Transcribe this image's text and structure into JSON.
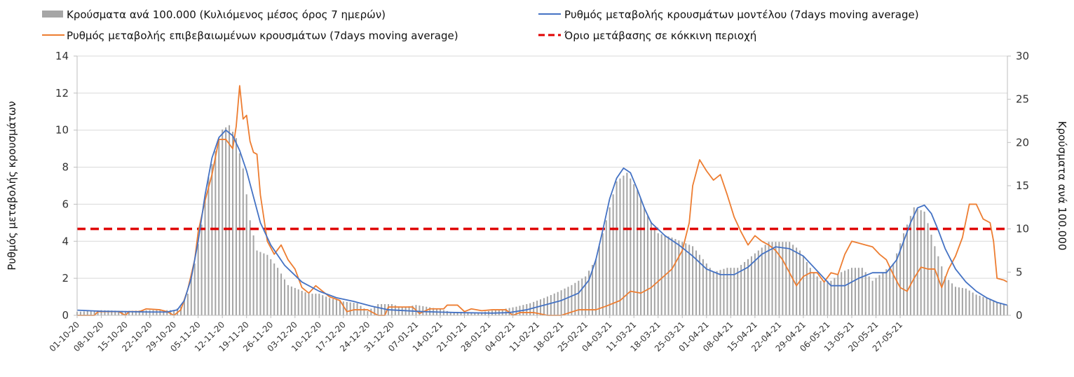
{
  "chart_data": {
    "type": "bar",
    "title": "",
    "ylabel": "Ρυθμός μεταβολής κρουσμάτων",
    "y2label": "Κρούσματα ανά 100.000",
    "ylim": [
      0,
      14
    ],
    "y2lim": [
      0,
      30
    ],
    "yticks": [
      "0",
      "2",
      "4",
      "6",
      "8",
      "10",
      "12",
      "14"
    ],
    "y2ticks": [
      "0",
      "5",
      "10",
      "15",
      "20",
      "25",
      "30"
    ],
    "xticks": [
      "01-10-20",
      "08-10-20",
      "15-10-20",
      "22-10-20",
      "29-10-20",
      "05-11-20",
      "12-11-20",
      "19-11-20",
      "26-11-20",
      "03-12-20",
      "10-12-20",
      "17-12-20",
      "24-12-20",
      "31-12-20",
      "07-01-21",
      "14-01-21",
      "21-01-21",
      "28-01-21",
      "04-02-21",
      "11-02-21",
      "18-02-21",
      "25-02-21",
      "04-03-21",
      "11-03-21",
      "18-03-21",
      "25-03-21",
      "01-04-21",
      "08-04-21",
      "15-04-21",
      "22-04-21",
      "29-04-21",
      "06-05-21",
      "13-05-21",
      "20-05-21",
      "27-05-21"
    ],
    "legend": [
      {
        "key": "bars",
        "label": "Κρούσματα ανά 100.000 (Κυλιόμενος μέσος όρος 7 ημερών)",
        "color": "#a6a6a6"
      },
      {
        "key": "model",
        "label": "Ρυθμός μεταβολής κρουσμάτων μοντέλου (7days moving average)",
        "color": "#4472c4"
      },
      {
        "key": "confirmed",
        "label": "Ρυθμός μεταβολής επιβεβαιωμένων κρουσμάτων (7days moving average)",
        "color": "#ed7d31"
      },
      {
        "key": "threshold",
        "label": "Όριο μετάβασης σε κόκκινη περιοχή",
        "color": "#e00000"
      }
    ],
    "series": [
      {
        "name": "Κρούσματα ανά 100.000 (Κυλιόμενος μέσος όρος 7 ημερών)",
        "axis": "right",
        "kind": "bar",
        "points": [
          [
            0,
            0.4
          ],
          [
            7,
            0.6
          ],
          [
            14,
            0.5
          ],
          [
            21,
            0.6
          ],
          [
            28,
            0.6
          ],
          [
            30,
            1.0
          ],
          [
            32,
            2.5
          ],
          [
            34,
            6.0
          ],
          [
            36,
            10.5
          ],
          [
            38,
            16.0
          ],
          [
            40,
            19.0
          ],
          [
            42,
            21.5
          ],
          [
            44,
            22.0
          ],
          [
            46,
            20.5
          ],
          [
            48,
            17.0
          ],
          [
            50,
            11.0
          ],
          [
            52,
            7.5
          ],
          [
            55,
            7.0
          ],
          [
            58,
            5.5
          ],
          [
            61,
            3.5
          ],
          [
            64,
            3.0
          ],
          [
            67,
            2.5
          ],
          [
            70,
            2.5
          ],
          [
            73,
            2.0
          ],
          [
            77,
            1.6
          ],
          [
            81,
            1.4
          ],
          [
            84,
            0.5
          ],
          [
            87,
            1.3
          ],
          [
            91,
            1.3
          ],
          [
            94,
            0.9
          ],
          [
            98,
            1.2
          ],
          [
            101,
            1.0
          ],
          [
            105,
            0.7
          ],
          [
            108,
            0.4
          ],
          [
            112,
            0.4
          ],
          [
            116,
            0.3
          ],
          [
            119,
            0.5
          ],
          [
            123,
            0.7
          ],
          [
            127,
            1.0
          ],
          [
            131,
            1.4
          ],
          [
            135,
            2.0
          ],
          [
            139,
            2.7
          ],
          [
            143,
            3.5
          ],
          [
            147,
            4.5
          ],
          [
            150,
            6.5
          ],
          [
            153,
            11.0
          ],
          [
            156,
            15.5
          ],
          [
            159,
            16.5
          ],
          [
            162,
            14.5
          ],
          [
            165,
            11.5
          ],
          [
            168,
            9.5
          ],
          [
            172,
            9.0
          ],
          [
            175,
            8.5
          ],
          [
            178,
            8.0
          ],
          [
            181,
            6.5
          ],
          [
            184,
            5.0
          ],
          [
            188,
            5.5
          ],
          [
            191,
            5.5
          ],
          [
            194,
            6.5
          ],
          [
            197,
            7.5
          ],
          [
            200,
            8.5
          ],
          [
            203,
            8.5
          ],
          [
            206,
            8.5
          ],
          [
            209,
            7.5
          ],
          [
            212,
            5.5
          ],
          [
            215,
            4.0
          ],
          [
            218,
            4.0
          ],
          [
            221,
            5.0
          ],
          [
            224,
            5.5
          ],
          [
            227,
            5.5
          ],
          [
            230,
            4.0
          ],
          [
            233,
            5.0
          ],
          [
            236,
            6.0
          ],
          [
            239,
            9.5
          ],
          [
            242,
            12.5
          ],
          [
            245,
            12.0
          ],
          [
            248,
            8.0
          ],
          [
            251,
            4.5
          ],
          [
            254,
            3.3
          ],
          [
            257,
            3.1
          ],
          [
            260,
            2.4
          ],
          [
            263,
            2.0
          ],
          [
            266,
            1.5
          ],
          [
            269,
            1.2
          ]
        ]
      },
      {
        "name": "Ρυθμός μεταβολής κρουσμάτων μοντέλου (7days moving average)",
        "axis": "left",
        "kind": "line",
        "points": [
          [
            0,
            0.28
          ],
          [
            7,
            0.22
          ],
          [
            14,
            0.2
          ],
          [
            21,
            0.18
          ],
          [
            26,
            0.18
          ],
          [
            29,
            0.3
          ],
          [
            31,
            0.8
          ],
          [
            33,
            2.0
          ],
          [
            35,
            4.0
          ],
          [
            37,
            6.5
          ],
          [
            39,
            8.5
          ],
          [
            41,
            9.6
          ],
          [
            43,
            10.0
          ],
          [
            45,
            9.7
          ],
          [
            47,
            8.9
          ],
          [
            49,
            7.8
          ],
          [
            51,
            6.4
          ],
          [
            53,
            5.0
          ],
          [
            56,
            3.8
          ],
          [
            60,
            2.7
          ],
          [
            65,
            1.8
          ],
          [
            70,
            1.3
          ],
          [
            75,
            0.95
          ],
          [
            80,
            0.75
          ],
          [
            85,
            0.5
          ],
          [
            90,
            0.3
          ],
          [
            100,
            0.2
          ],
          [
            110,
            0.15
          ],
          [
            120,
            0.12
          ],
          [
            125,
            0.15
          ],
          [
            130,
            0.3
          ],
          [
            135,
            0.55
          ],
          [
            140,
            0.8
          ],
          [
            145,
            1.2
          ],
          [
            148,
            1.9
          ],
          [
            150,
            3.0
          ],
          [
            152,
            4.6
          ],
          [
            154,
            6.3
          ],
          [
            156,
            7.4
          ],
          [
            158,
            7.95
          ],
          [
            160,
            7.7
          ],
          [
            162,
            6.8
          ],
          [
            164,
            5.8
          ],
          [
            166,
            5.0
          ],
          [
            170,
            4.3
          ],
          [
            174,
            3.8
          ],
          [
            178,
            3.2
          ],
          [
            182,
            2.5
          ],
          [
            186,
            2.2
          ],
          [
            190,
            2.2
          ],
          [
            194,
            2.6
          ],
          [
            198,
            3.3
          ],
          [
            202,
            3.7
          ],
          [
            206,
            3.6
          ],
          [
            210,
            3.2
          ],
          [
            214,
            2.4
          ],
          [
            218,
            1.6
          ],
          [
            222,
            1.6
          ],
          [
            226,
            2.0
          ],
          [
            230,
            2.3
          ],
          [
            234,
            2.3
          ],
          [
            237,
            3.0
          ],
          [
            239,
            4.0
          ],
          [
            241,
            5.0
          ],
          [
            243,
            5.8
          ],
          [
            245,
            5.95
          ],
          [
            247,
            5.5
          ],
          [
            249,
            4.6
          ],
          [
            251,
            3.6
          ],
          [
            254,
            2.5
          ],
          [
            257,
            1.8
          ],
          [
            260,
            1.3
          ],
          [
            263,
            0.95
          ],
          [
            266,
            0.7
          ],
          [
            269,
            0.55
          ]
        ]
      },
      {
        "name": "Ρυθμός μεταβολής επιβεβαιωμένων κρουσμάτων (7days moving average)",
        "axis": "left",
        "kind": "line",
        "points": [
          [
            0,
            0.0
          ],
          [
            5,
            0.0
          ],
          [
            6,
            0.2
          ],
          [
            12,
            0.2
          ],
          [
            14,
            0.0
          ],
          [
            15,
            0.2
          ],
          [
            18,
            0.2
          ],
          [
            20,
            0.35
          ],
          [
            24,
            0.3
          ],
          [
            26,
            0.2
          ],
          [
            28,
            0.0
          ],
          [
            30,
            0.3
          ],
          [
            32,
            1.4
          ],
          [
            34,
            3.0
          ],
          [
            35,
            4.5
          ],
          [
            37,
            6.2
          ],
          [
            39,
            7.6
          ],
          [
            41,
            9.5
          ],
          [
            43,
            9.5
          ],
          [
            45,
            9.0
          ],
          [
            46,
            10.2
          ],
          [
            47,
            12.4
          ],
          [
            48,
            10.6
          ],
          [
            49,
            10.8
          ],
          [
            50,
            9.4
          ],
          [
            51,
            8.8
          ],
          [
            52,
            8.7
          ],
          [
            53,
            6.5
          ],
          [
            55,
            4.0
          ],
          [
            57,
            3.3
          ],
          [
            59,
            3.8
          ],
          [
            61,
            3.0
          ],
          [
            63,
            2.5
          ],
          [
            65,
            1.5
          ],
          [
            67,
            1.2
          ],
          [
            69,
            1.6
          ],
          [
            71,
            1.3
          ],
          [
            73,
            1.0
          ],
          [
            76,
            0.8
          ],
          [
            78,
            0.2
          ],
          [
            80,
            0.3
          ],
          [
            84,
            0.3
          ],
          [
            87,
            0.0
          ],
          [
            89,
            0.0
          ],
          [
            90,
            0.45
          ],
          [
            97,
            0.45
          ],
          [
            99,
            0.1
          ],
          [
            102,
            0.35
          ],
          [
            106,
            0.35
          ],
          [
            107,
            0.55
          ],
          [
            110,
            0.55
          ],
          [
            112,
            0.2
          ],
          [
            114,
            0.35
          ],
          [
            117,
            0.25
          ],
          [
            120,
            0.3
          ],
          [
            124,
            0.3
          ],
          [
            126,
            0.0
          ],
          [
            128,
            0.15
          ],
          [
            132,
            0.15
          ],
          [
            136,
            0.0
          ],
          [
            140,
            0.0
          ],
          [
            145,
            0.3
          ],
          [
            150,
            0.3
          ],
          [
            153,
            0.5
          ],
          [
            157,
            0.8
          ],
          [
            160,
            1.3
          ],
          [
            163,
            1.2
          ],
          [
            166,
            1.5
          ],
          [
            169,
            2.0
          ],
          [
            172,
            2.5
          ],
          [
            175,
            3.5
          ],
          [
            177,
            5.0
          ],
          [
            178,
            7.0
          ],
          [
            180,
            8.4
          ],
          [
            182,
            7.8
          ],
          [
            184,
            7.3
          ],
          [
            186,
            7.6
          ],
          [
            188,
            6.5
          ],
          [
            190,
            5.3
          ],
          [
            192,
            4.5
          ],
          [
            194,
            3.8
          ],
          [
            196,
            4.3
          ],
          [
            198,
            4.0
          ],
          [
            200,
            3.8
          ],
          [
            202,
            3.5
          ],
          [
            204,
            3.0
          ],
          [
            206,
            2.3
          ],
          [
            208,
            1.6
          ],
          [
            210,
            2.1
          ],
          [
            212,
            2.3
          ],
          [
            214,
            2.3
          ],
          [
            216,
            1.8
          ],
          [
            218,
            2.3
          ],
          [
            220,
            2.2
          ],
          [
            222,
            3.3
          ],
          [
            224,
            4.0
          ],
          [
            226,
            3.9
          ],
          [
            228,
            3.8
          ],
          [
            230,
            3.7
          ],
          [
            232,
            3.3
          ],
          [
            234,
            3.0
          ],
          [
            236,
            2.2
          ],
          [
            238,
            1.5
          ],
          [
            240,
            1.3
          ],
          [
            242,
            2.0
          ],
          [
            244,
            2.6
          ],
          [
            246,
            2.5
          ],
          [
            248,
            2.5
          ],
          [
            250,
            1.5
          ],
          [
            252,
            2.5
          ],
          [
            254,
            3.2
          ],
          [
            256,
            4.2
          ],
          [
            258,
            6.0
          ],
          [
            260,
            6.0
          ],
          [
            262,
            5.2
          ],
          [
            264,
            5.0
          ],
          [
            265,
            4.0
          ],
          [
            266,
            2.0
          ],
          [
            268,
            1.9
          ],
          [
            269,
            1.8
          ]
        ]
      },
      {
        "name": "Όριο μετάβασης σε κόκκινη περιοχή",
        "axis": "left",
        "kind": "line",
        "value": 4.67
      }
    ]
  }
}
